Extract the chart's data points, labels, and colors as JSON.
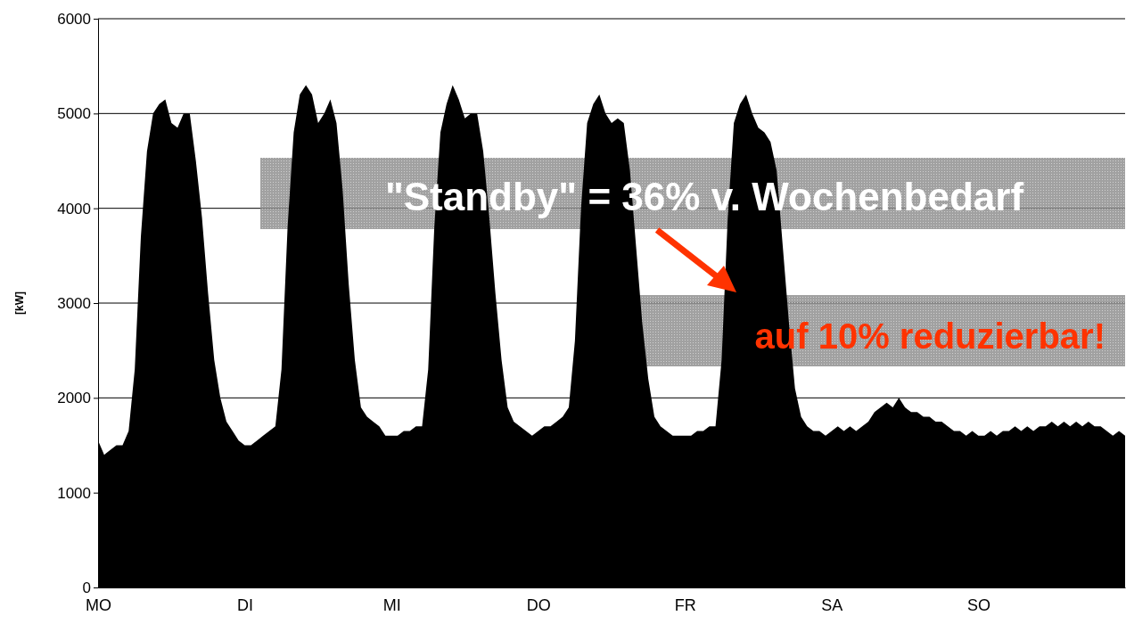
{
  "chart_data": {
    "type": "area",
    "ylabel": "[kW]",
    "categories": [
      "MO",
      null,
      null,
      null,
      null,
      null,
      null,
      null,
      null,
      null,
      null,
      null,
      null,
      null,
      null,
      null,
      null,
      null,
      null,
      null,
      null,
      null,
      null,
      null,
      "DI",
      null,
      null,
      null,
      null,
      null,
      null,
      null,
      null,
      null,
      null,
      null,
      null,
      null,
      null,
      null,
      null,
      null,
      null,
      null,
      null,
      null,
      null,
      null,
      "MI",
      null,
      null,
      null,
      null,
      null,
      null,
      null,
      null,
      null,
      null,
      null,
      null,
      null,
      null,
      null,
      null,
      null,
      null,
      null,
      null,
      null,
      null,
      null,
      "DO",
      null,
      null,
      null,
      null,
      null,
      null,
      null,
      null,
      null,
      null,
      null,
      null,
      null,
      null,
      null,
      null,
      null,
      null,
      null,
      null,
      null,
      null,
      null,
      "FR",
      null,
      null,
      null,
      null,
      null,
      null,
      null,
      null,
      null,
      null,
      null,
      null,
      null,
      null,
      null,
      null,
      null,
      null,
      null,
      null,
      null,
      null,
      null,
      "SA",
      null,
      null,
      null,
      null,
      null,
      null,
      null,
      null,
      null,
      null,
      null,
      null,
      null,
      null,
      null,
      null,
      null,
      null,
      null,
      null,
      null,
      null,
      null,
      "SO",
      null,
      null,
      null,
      null,
      null,
      null,
      null,
      null,
      null,
      null,
      null,
      null,
      null,
      null,
      null,
      null,
      null,
      null,
      null,
      null,
      null,
      null,
      null,
      null
    ],
    "values": [
      1550,
      1400,
      1450,
      1500,
      1500,
      1650,
      2300,
      3700,
      4600,
      5000,
      5100,
      5150,
      4900,
      4850,
      5000,
      5000,
      4500,
      3900,
      3100,
      2400,
      2000,
      1750,
      1650,
      1550,
      1500,
      1500,
      1550,
      1600,
      1650,
      1700,
      2300,
      3800,
      4800,
      5200,
      5300,
      5200,
      4900,
      5000,
      5150,
      4900,
      4200,
      3200,
      2400,
      1900,
      1800,
      1750,
      1700,
      1600,
      1600,
      1600,
      1650,
      1650,
      1700,
      1700,
      2300,
      3800,
      4800,
      5100,
      5300,
      5150,
      4950,
      5000,
      5000,
      4600,
      3900,
      3100,
      2400,
      1900,
      1750,
      1700,
      1650,
      1600,
      1650,
      1700,
      1700,
      1750,
      1800,
      1900,
      2600,
      4000,
      4900,
      5100,
      5200,
      5000,
      4900,
      4950,
      4900,
      4400,
      3600,
      2800,
      2200,
      1800,
      1700,
      1650,
      1600,
      1600,
      1600,
      1600,
      1650,
      1650,
      1700,
      1700,
      2400,
      3900,
      4900,
      5100,
      5200,
      5000,
      4850,
      4800,
      4700,
      4400,
      3600,
      2800,
      2100,
      1800,
      1700,
      1650,
      1650,
      1600,
      1650,
      1700,
      1650,
      1700,
      1650,
      1700,
      1750,
      1850,
      1900,
      1950,
      1900,
      2000,
      1900,
      1850,
      1850,
      1800,
      1800,
      1750,
      1750,
      1700,
      1650,
      1650,
      1600,
      1650,
      1600,
      1600,
      1650,
      1600,
      1650,
      1650,
      1700,
      1650,
      1700,
      1650,
      1700,
      1700,
      1750,
      1700,
      1750,
      1700,
      1750,
      1700,
      1750,
      1700,
      1700,
      1650,
      1600,
      1650,
      1600
    ],
    "color": "#000000",
    "ylim": [
      0,
      6000
    ],
    "yticks": [
      0,
      1000,
      2000,
      3000,
      4000,
      5000,
      6000
    ],
    "grid": "y",
    "annotations": [
      "\"Standby\" = 36% v. Wochenbedarf",
      "auf 10% reduzierbar!"
    ]
  }
}
